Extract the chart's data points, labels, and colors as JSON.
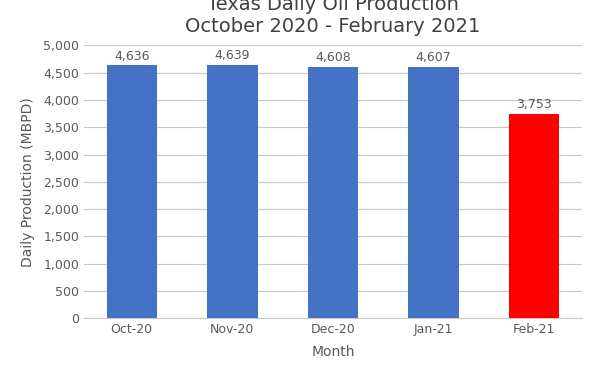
{
  "categories": [
    "Oct-20",
    "Nov-20",
    "Dec-20",
    "Jan-21",
    "Feb-21"
  ],
  "values": [
    4636,
    4639,
    4608,
    4607,
    3753
  ],
  "bar_colors": [
    "#4472C4",
    "#4472C4",
    "#4472C4",
    "#4472C4",
    "#FF0000"
  ],
  "title_line1": "Texas Daily Oil Production",
  "title_line2": "October 2020 - February 2021",
  "xlabel": "Month",
  "ylabel": "Daily Production (MBPD)",
  "ylim": [
    0,
    5000
  ],
  "yticks": [
    0,
    500,
    1000,
    1500,
    2000,
    2500,
    3000,
    3500,
    4000,
    4500,
    5000
  ],
  "ytick_labels": [
    "0",
    "500",
    "1,000",
    "1,500",
    "2,000",
    "2,500",
    "3,000",
    "3,500",
    "4,000",
    "4,500",
    "5,000"
  ],
  "background_color": "#FFFFFF",
  "grid_color": "#C8C8C8",
  "title_fontsize": 14,
  "label_fontsize": 10,
  "tick_fontsize": 9,
  "annotation_fontsize": 9,
  "bar_width": 0.5
}
